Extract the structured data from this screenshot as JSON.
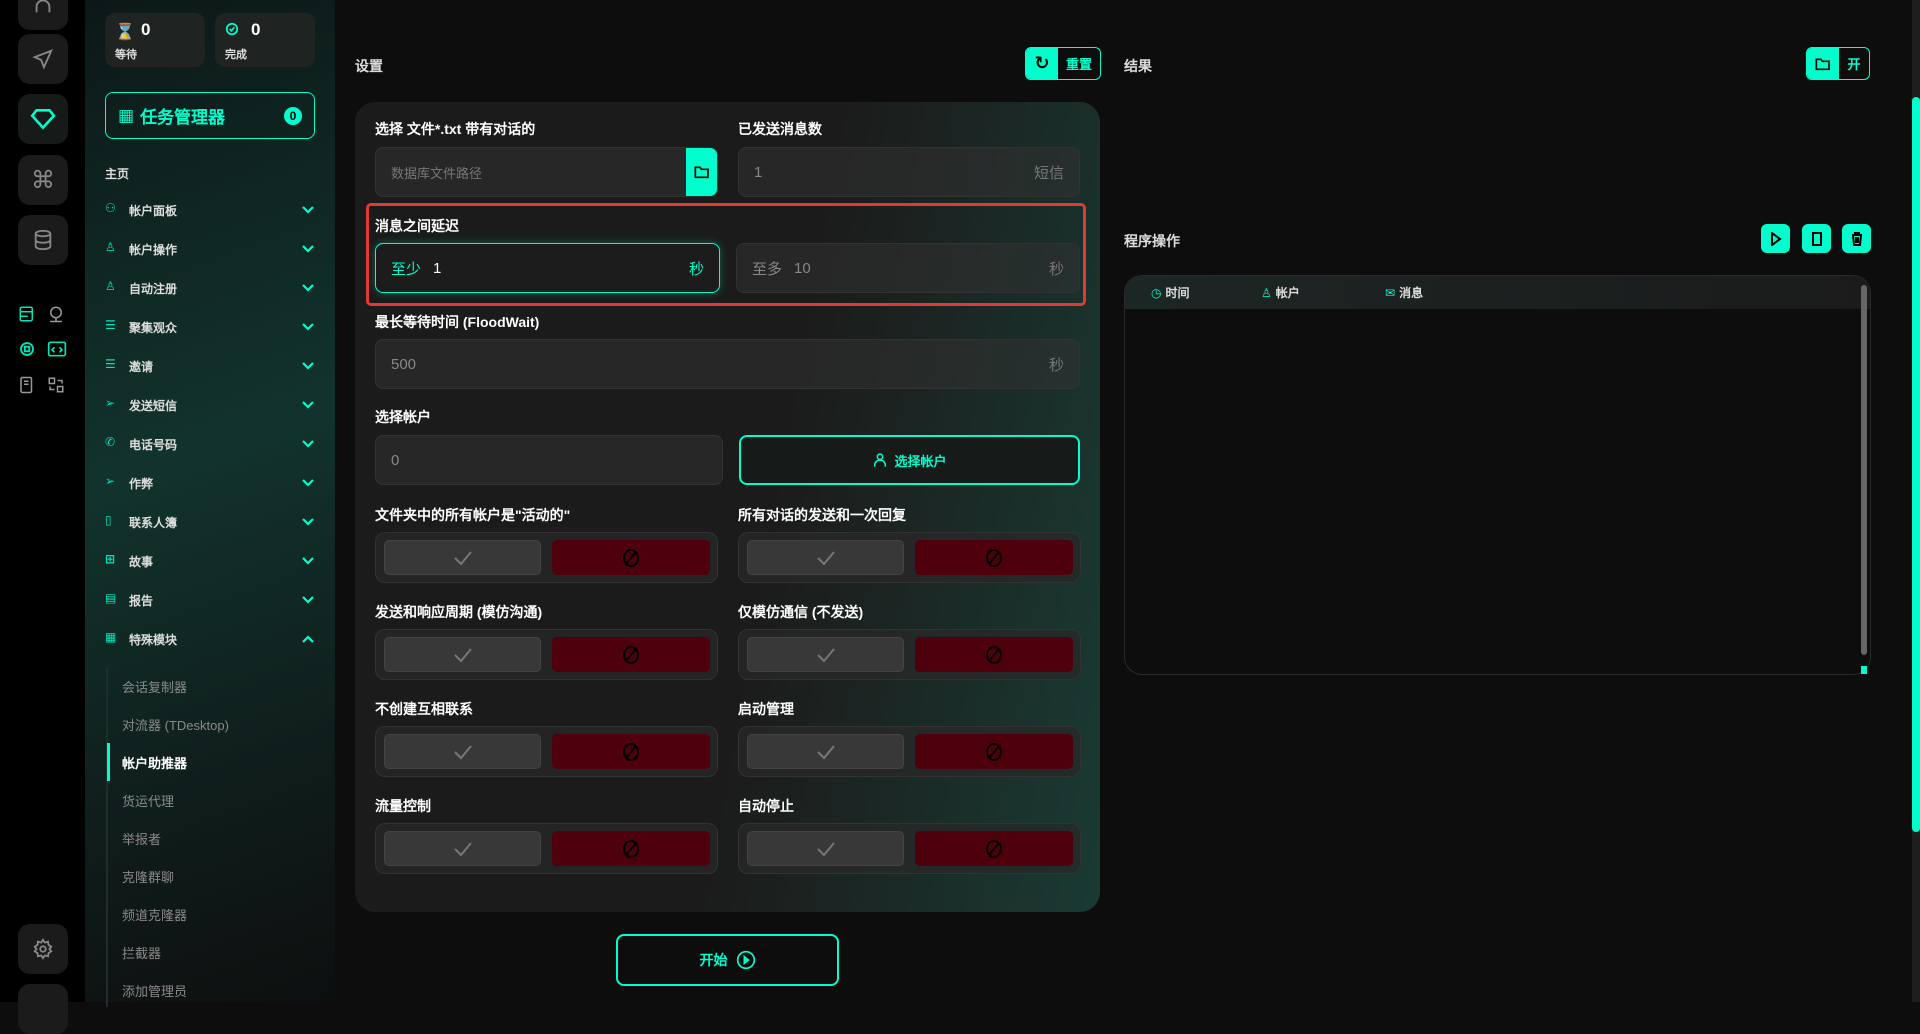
{
  "colors": {
    "accent": "#00ffcc",
    "danger": "#4e000d",
    "highlight": "#e03a35"
  },
  "stats": {
    "waiting": {
      "value": "0",
      "label": "等待"
    },
    "done": {
      "value": "0",
      "label": "完成"
    }
  },
  "task_manager": {
    "label": "任务管理器",
    "count": "0"
  },
  "sidebar": {
    "home": "主页",
    "items": [
      {
        "label": "帐户面板",
        "icon": "users-icon"
      },
      {
        "label": "帐户操作",
        "icon": "user-icon"
      },
      {
        "label": "自动注册",
        "icon": "user-plus-icon"
      },
      {
        "label": "聚集观众",
        "icon": "user-list-icon"
      },
      {
        "label": "邀请",
        "icon": "user-list-icon"
      },
      {
        "label": "发送短信",
        "icon": "send-icon"
      },
      {
        "label": "电话号码",
        "icon": "phone-icon"
      },
      {
        "label": "作弊",
        "icon": "send-plus-icon"
      },
      {
        "label": "联系人簿",
        "icon": "contacts-icon"
      },
      {
        "label": "故事",
        "icon": "plus-square-icon"
      },
      {
        "label": "报告",
        "icon": "report-icon"
      },
      {
        "label": "特殊模块",
        "icon": "table-icon",
        "expanded": true
      }
    ],
    "subitems": [
      "会话复制器",
      "对流器 (TDesktop)",
      "帐户助推器",
      "货运代理",
      "举报者",
      "克隆群聊",
      "频道克隆器",
      "拦截器",
      "添加管理员"
    ],
    "active_subitem": "帐户助推器"
  },
  "settings": {
    "title": "设置",
    "reset_label": "重置",
    "file": {
      "label": "选择 文件*.txt 带有对话的",
      "placeholder": "数据库文件路径"
    },
    "sent": {
      "label": "已发送消息数",
      "value": "1",
      "unit": "短信"
    },
    "delay": {
      "label": "消息之间延迟",
      "min_prefix": "至少",
      "min_value": "1",
      "min_unit": "秒",
      "max_prefix": "至多",
      "max_value": "10",
      "max_unit": "秒"
    },
    "floodwait": {
      "label": "最长等待时间 (FloodWait)",
      "value": "500",
      "unit": "秒"
    },
    "accounts": {
      "label": "选择帐户",
      "value": "0",
      "button": "选择帐户"
    },
    "toggles": [
      {
        "label": "文件夹中的所有帐户是\"活动的\"",
        "enabled": false
      },
      {
        "label": "所有对话的发送和一次回复",
        "enabled": false
      },
      {
        "label": "发送和响应周期 (模仿沟通)",
        "enabled": false
      },
      {
        "label": "仅模仿通信 (不发送)",
        "enabled": false
      },
      {
        "label": "不创建互相联系",
        "enabled": false
      },
      {
        "label": "启动管理",
        "enabled": false
      },
      {
        "label": "流量控制",
        "enabled": false
      },
      {
        "label": "自动停止",
        "enabled": false
      }
    ],
    "start_label": "开始"
  },
  "results": {
    "title": "结果",
    "open_label": "开"
  },
  "operations": {
    "title": "程序操作",
    "columns": [
      "时间",
      "帐户",
      "消息"
    ]
  }
}
